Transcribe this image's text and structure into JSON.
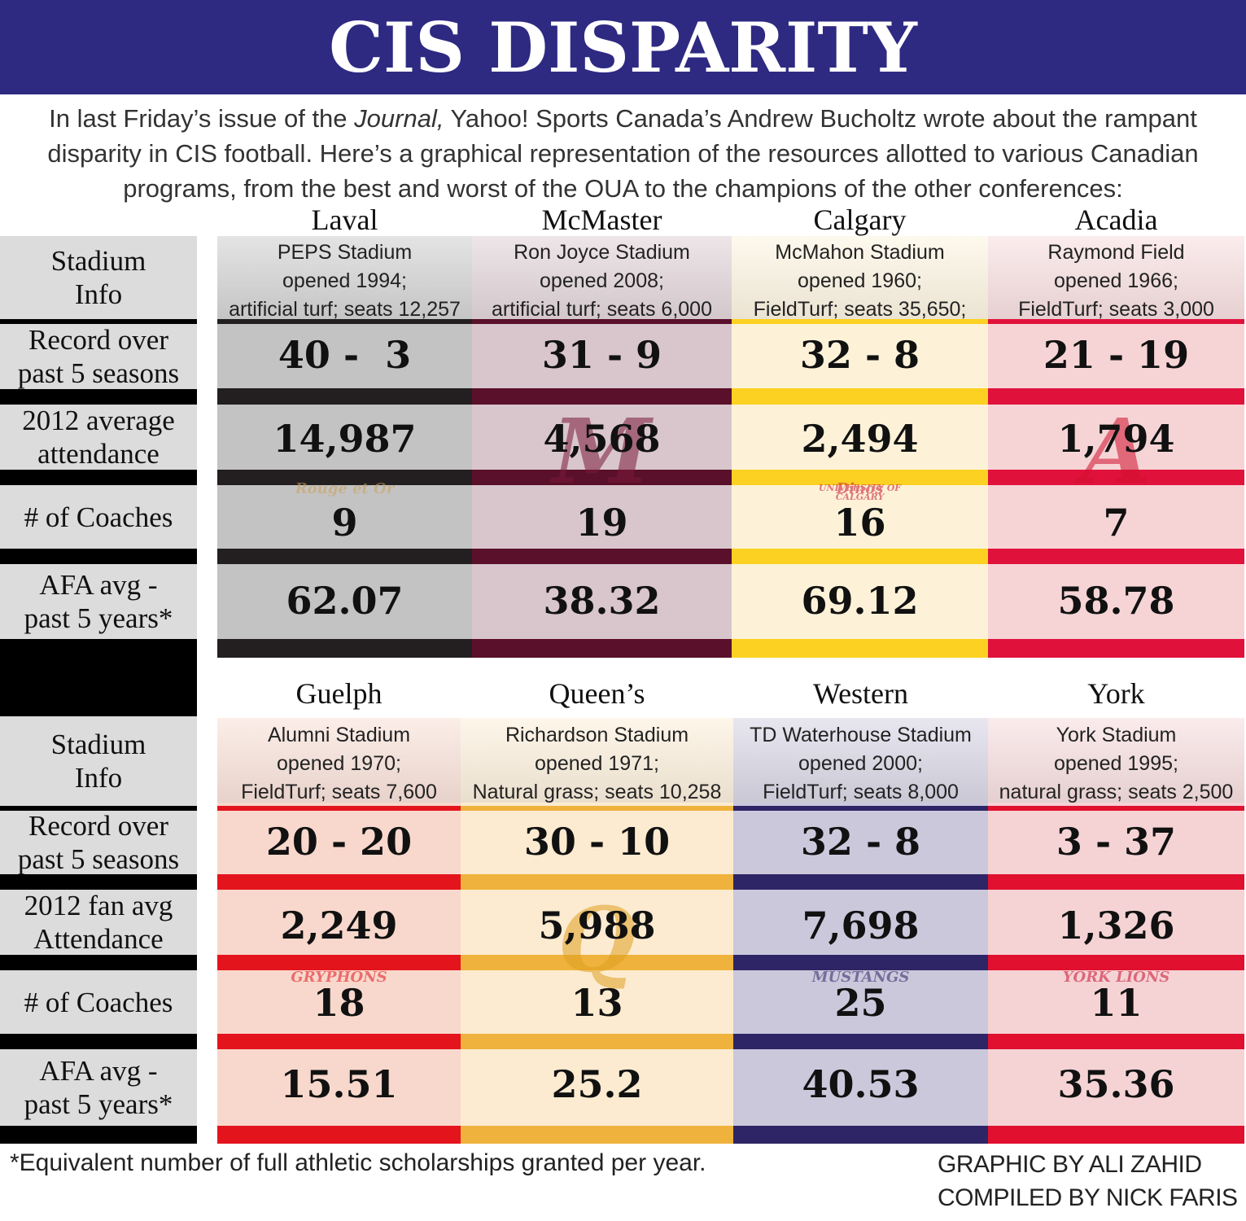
{
  "header": {
    "title": "CIS DISPARITY",
    "intro_part1": "In last Friday’s issue of the ",
    "intro_italic": "Journal,",
    "intro_part2": " Yahoo! Sports Canada’s Andrew Bucholtz wrote about the rampant disparity in CIS football. Here’s a graphical representation of the resources allotted to various Canadian programs, from the best and worst of the OUA to the champions of the other conferences:"
  },
  "top_labels": {
    "stadium_1": "Stadium",
    "stadium_2": "Info",
    "record_1": "Record over",
    "record_2": "past 5 seasons",
    "attendance_1": "2012 average",
    "attendance_2": "attendance",
    "coaches": "# of Coaches",
    "afa_1": "AFA avg -",
    "afa_2": "past 5 years*"
  },
  "bottom_labels": {
    "stadium_1": "Stadium",
    "stadium_2": "Info",
    "record_1": "Record over",
    "record_2": "past 5 seasons",
    "attendance_1": "2012 fan avg",
    "attendance_2": "Attendance",
    "coaches": "# of Coaches",
    "afa_1": "AFA avg -",
    "afa_2": "past 5 years*"
  },
  "top_teams": [
    {
      "name": "Laval",
      "stadium": "PEPS Stadium",
      "opened": "opened 1994;",
      "details": "artificial turf; seats 12,257",
      "record": "40 -  3",
      "attendance": "14,987",
      "coaches": "9",
      "afa": "62.07",
      "bg": "#c4c3c4",
      "band": "#231f20",
      "logo": "Rouge et Or",
      "logo_color": "#c9a25a"
    },
    {
      "name": "McMaster",
      "stadium": "Ron Joyce Stadium",
      "opened": "opened 2008;",
      "details": "artificial turf; seats 6,000",
      "record": "31 - 9",
      "attendance": "4,568",
      "coaches": "19",
      "afa": "38.32",
      "bg": "#d8c6cc",
      "band": "#5a0f2a",
      "logo": "M",
      "logo_color": "#7a1a3a"
    },
    {
      "name": "Calgary",
      "stadium": "McMahon Stadium",
      "opened": "opened 1960;",
      "details": "FieldTurf; seats 35,650;",
      "record": "32 - 8",
      "attendance": "2,494",
      "coaches": "16",
      "afa": "69.12",
      "bg": "#fdf2d8",
      "band": "#fcd121",
      "logo": "Dinos",
      "logo_color": "#c8102e",
      "logo_sub": "UNIVERSITY OF CALGARY"
    },
    {
      "name": "Acadia",
      "stadium": "Raymond Field",
      "opened": "opened 1966;",
      "details": "FieldTurf; seats 3,000",
      "record": "21 - 19",
      "attendance": "1,794",
      "coaches": "7",
      "afa": "58.78",
      "bg": "#f6d4d6",
      "band": "#e0123c",
      "logo": "A",
      "logo_color": "#d0102e"
    }
  ],
  "bottom_teams": [
    {
      "name": "Guelph",
      "stadium": "Alumni Stadium",
      "opened": "opened 1970;",
      "details": "FieldTurf; seats 7,600",
      "record": "20 - 20",
      "attendance": "2,249",
      "coaches": "18",
      "afa": "15.51",
      "bg": "#f8d8cc",
      "band": "#e4141d",
      "logo": "GUELPH GRYPHONS",
      "logo_color": "#e4141d"
    },
    {
      "name": "Queen’s",
      "stadium": "Richardson Stadium",
      "opened": "opened 1971;",
      "details": "Natural grass; seats 10,258",
      "record": "30 - 10",
      "attendance": "5,988",
      "coaches": "13",
      "afa": "25.2",
      "bg": "#fcebd0",
      "band": "#efb23c",
      "logo": "Q",
      "logo_color": "#e0a020"
    },
    {
      "name": "Western",
      "stadium": "TD Waterhouse Stadium",
      "opened": "opened 2000;",
      "details": "FieldTurf; seats 8,000",
      "record": "32 - 8",
      "attendance": "7,698",
      "coaches": "25",
      "afa": "40.53",
      "bg": "#ccc8dc",
      "band": "#2e2566",
      "logo": "MUSTANGS",
      "logo_color": "#2e2566"
    },
    {
      "name": "York",
      "stadium": "York Stadium",
      "opened": "opened 1995;",
      "details": "natural grass; seats 2,500",
      "record": "3 - 37",
      "attendance": "1,326",
      "coaches": "11",
      "afa": "35.36",
      "bg": "#f5d3d5",
      "band": "#e0102e",
      "logo": "YORK LIONS",
      "logo_color": "#c8102e"
    }
  ],
  "footer": {
    "footnote": "*Equivalent number of full athletic scholarships granted per year.",
    "credit_1": "GRAPHIC BY ALI ZAHID",
    "credit_2": "COMPILED BY NICK FARIS"
  }
}
